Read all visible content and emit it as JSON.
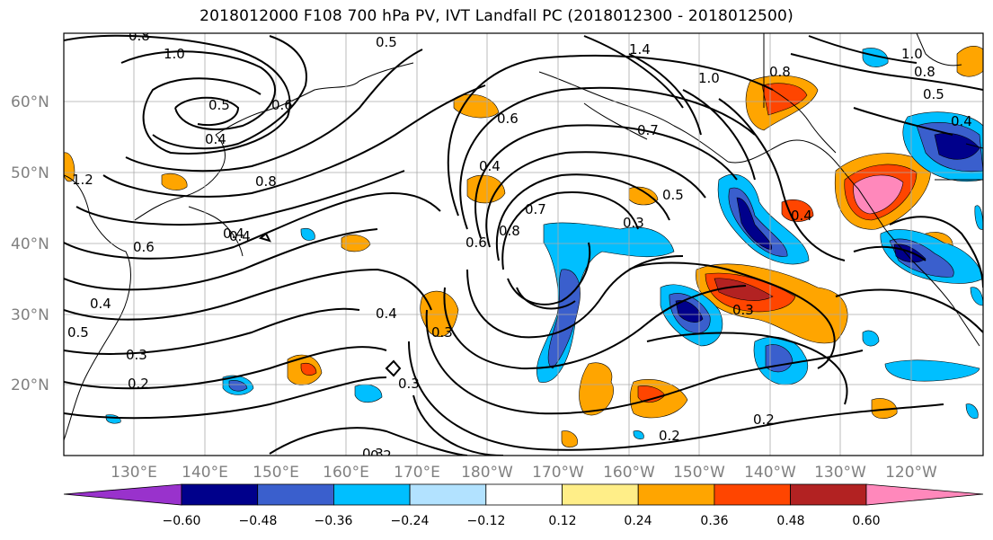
{
  "title": "2018012000 F108 700 hPa PV, IVT Landfall PC (2018012300 - 2018012500)",
  "map": {
    "lat_ticks": [
      "60°N",
      "50°N",
      "40°N",
      "30°N",
      "20°N"
    ],
    "lon_ticks": [
      "130°E",
      "140°E",
      "150°E",
      "160°E",
      "170°E",
      "180°W",
      "170°W",
      "160°W",
      "150°W",
      "140°W",
      "130°W",
      "120°W"
    ],
    "contour_labels": [
      "0.8",
      "1.0",
      "0.5",
      "1.4",
      "0.5",
      "0.6",
      "0.4",
      "0.8",
      "1.2",
      "0.6",
      "0.4",
      "0.8",
      "0.6",
      "0.5",
      "0.4",
      "0.7",
      "0.3",
      "0.5",
      "0.4",
      "0.3",
      "0.4",
      "0.3",
      "0.3",
      "0.4",
      "0.3",
      "0.2",
      "0.3",
      "0.2",
      "0.2",
      "0.2",
      "1.0",
      "0.8",
      "0.5",
      "0.7",
      "0.8",
      "1.0",
      "0.6",
      "0.4",
      "0.4"
    ]
  },
  "colorbar": {
    "tick_labels": [
      "−0.60",
      "−0.48",
      "−0.36",
      "−0.24",
      "−0.12",
      "0.12",
      "0.24",
      "0.36",
      "0.48",
      "0.60"
    ],
    "colors": [
      "#9932cc",
      "#00008b",
      "#3a5fcd",
      "#00bfff",
      "#b2e2ff",
      "#ffffff",
      "#ffee88",
      "#ffa500",
      "#ff4500",
      "#b22222",
      "#ff88bb"
    ]
  }
}
